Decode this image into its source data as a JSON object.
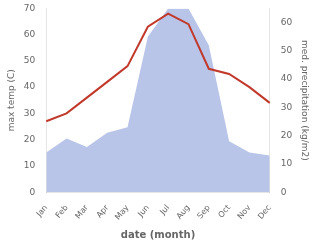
{
  "chart_data": {
    "type": "line",
    "categories": [
      "Jan",
      "Feb",
      "Mar",
      "Apr",
      "May",
      "Jun",
      "Jul",
      "Aug",
      "Sep",
      "Oct",
      "Nov",
      "Dec"
    ],
    "series": [
      {
        "type": "area",
        "axis": "y2",
        "color": "#b8c4e8",
        "values": [
          14,
          19,
          16,
          21,
          23,
          55,
          65,
          65,
          52,
          18,
          14,
          13
        ]
      },
      {
        "type": "line",
        "axis": "y",
        "color": "#c0392b",
        "values": [
          27,
          30,
          36,
          42,
          48,
          63,
          68,
          64,
          47,
          45,
          40,
          34
        ]
      }
    ],
    "xlabel": "date (month)",
    "ylabel": "max temp (C)",
    "y2label": "med. precipitation (kg/m2)",
    "ylim": [
      0,
      70
    ],
    "yticks": [
      0,
      10,
      20,
      30,
      40,
      50,
      60,
      70
    ],
    "y2lim": [
      0,
      65
    ],
    "y2ticks": [
      0,
      10,
      20,
      30,
      40,
      50,
      60
    ],
    "grid": false
  }
}
